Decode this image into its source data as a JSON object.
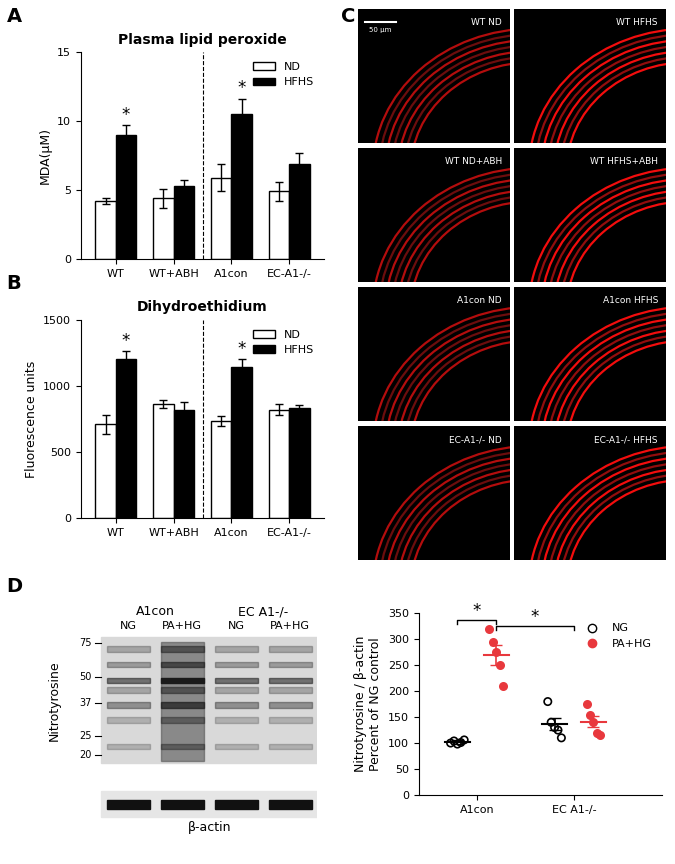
{
  "chart_data": [
    {
      "panel": "A",
      "type": "bar",
      "title": "Plasma lipid peroxide",
      "ylabel": "MDA(μM)",
      "categories": [
        "WT",
        "WT+ABH",
        "A1con",
        "EC-A1-/-"
      ],
      "series": [
        {
          "name": "ND",
          "color": "#ffffff",
          "values": [
            4.2,
            4.4,
            5.9,
            4.9
          ],
          "errors": [
            0.2,
            0.7,
            1.0,
            0.7
          ]
        },
        {
          "name": "HFHS",
          "color": "#000000",
          "values": [
            9.0,
            5.3,
            10.5,
            6.9
          ],
          "errors": [
            0.7,
            0.4,
            1.1,
            0.8
          ]
        }
      ],
      "ylim": [
        0,
        15
      ],
      "yticks": [
        0,
        5,
        10,
        15
      ],
      "legend": "upper right",
      "grid": false,
      "annotations": [
        {
          "category": "WT",
          "series": "HFHS",
          "text": "*"
        },
        {
          "category": "A1con",
          "series": "HFHS",
          "text": "*"
        }
      ]
    },
    {
      "panel": "B",
      "type": "bar",
      "title": "Dihydroethidium",
      "ylabel": "Fluorescence units",
      "categories": [
        "WT",
        "WT+ABH",
        "A1con",
        "EC-A1-/-"
      ],
      "series": [
        {
          "name": "ND",
          "color": "#ffffff",
          "values": [
            710,
            860,
            735,
            820
          ],
          "errors": [
            70,
            30,
            40,
            40
          ]
        },
        {
          "name": "HFHS",
          "color": "#000000",
          "values": [
            1200,
            820,
            1140,
            835
          ],
          "errors": [
            60,
            60,
            60,
            20
          ]
        }
      ],
      "ylim": [
        0,
        1500
      ],
      "yticks": [
        0,
        500,
        1000,
        1500
      ],
      "legend": "upper right",
      "grid": false,
      "annotations": [
        {
          "category": "WT",
          "series": "HFHS",
          "text": "*"
        },
        {
          "category": "A1con",
          "series": "HFHS",
          "text": "*"
        }
      ]
    },
    {
      "type": "scatter",
      "ylabel": "Nitrotyrosine / β-actin\nPercent of NG control",
      "categories": [
        "A1con",
        "EC A1-/-"
      ],
      "series": [
        {
          "name": "NG",
          "color": "#000000",
          "marker": "circle-open",
          "values": [
            [
              100,
              104,
              98,
              101,
              106
            ],
            [
              180,
              140,
              130,
              125,
              110
            ]
          ],
          "means": [
            102,
            137
          ],
          "errors": [
            3,
            12
          ]
        },
        {
          "name": "PA+HG",
          "color": "#e8383d",
          "marker": "circle",
          "values": [
            [
              320,
              295,
              275,
              250,
              210
            ],
            [
              175,
              155,
              140,
              120,
              115
            ]
          ],
          "means": [
            270,
            141
          ],
          "errors": [
            20,
            11
          ]
        }
      ],
      "ylim": [
        0,
        350
      ],
      "yticks": [
        0,
        50,
        100,
        150,
        200,
        250,
        300,
        350
      ],
      "legend": "upper right",
      "grid": false,
      "annotations": [
        {
          "text": "*",
          "from": [
            "A1con",
            "NG"
          ],
          "to": [
            "A1con",
            "PA+HG"
          ],
          "y": 338
        },
        {
          "text": "*",
          "from": [
            "A1con",
            "PA+HG"
          ],
          "to": [
            "EC A1-/-"
          ],
          "y": 326
        }
      ]
    }
  ],
  "images": {
    "panel": "C",
    "scale_bar": "50 μm",
    "labels": [
      "WT ND",
      "WT HFHS",
      "WT ND+ABH",
      "WT HFHS+ABH",
      "A1con ND",
      "A1con HFHS",
      "EC-A1-/- ND",
      "EC-A1-/- HFHS"
    ]
  },
  "blot": {
    "panel": "D",
    "groups": [
      "A1con",
      "EC A1-/-"
    ],
    "lanes": [
      "NG",
      "PA+HG",
      "NG",
      "PA+HG"
    ],
    "protein": "Nitrotyrosine",
    "loading_control": "β-actin",
    "markers": [
      75,
      50,
      37,
      25,
      20
    ]
  }
}
